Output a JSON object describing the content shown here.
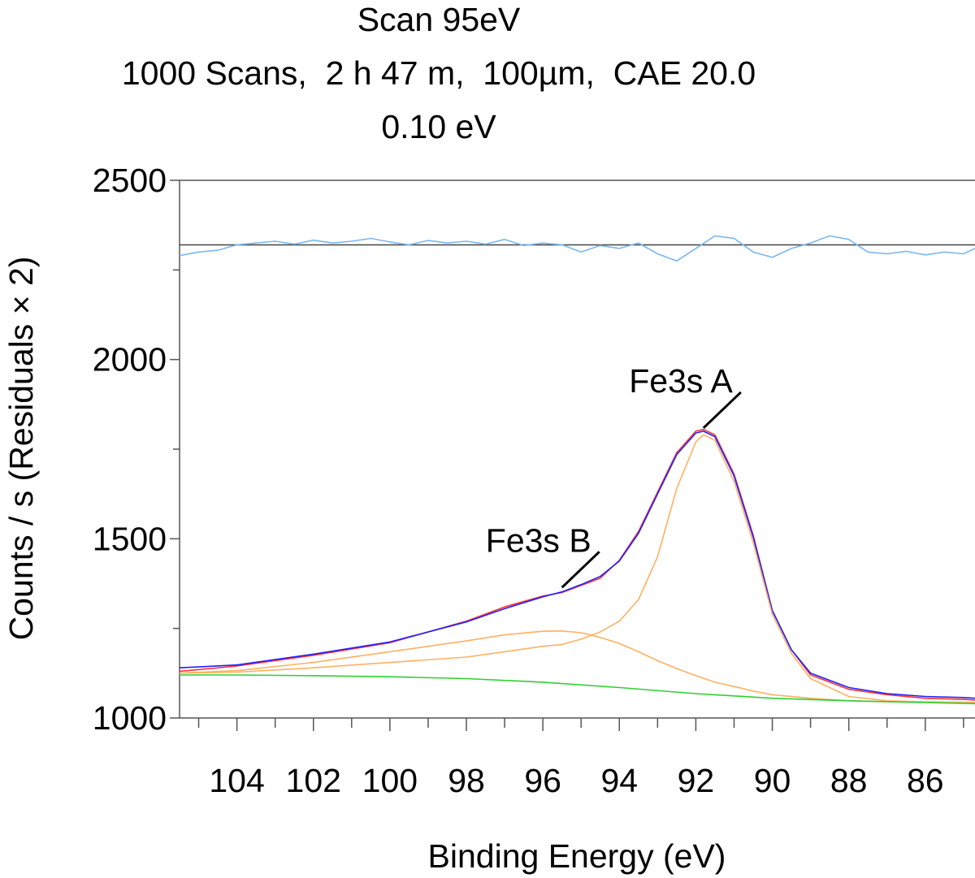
{
  "title_lines": [
    "Scan 95eV",
    "1000 Scans,  2 h 47 m,  100µm,  CAE 20.0",
    "0.10 eV"
  ],
  "chart_data": {
    "type": "line",
    "xlabel": "Binding Energy (eV)",
    "ylabel": "Counts / s  (Residuals × 2)",
    "x_axis_reversed": true,
    "xlim": [
      105.5,
      84.7
    ],
    "ylim": [
      1000,
      2500
    ],
    "x_ticks": [
      104,
      102,
      100,
      98,
      96,
      94,
      92,
      90,
      88,
      86
    ],
    "y_ticks": [
      1000,
      1500,
      2000,
      2500
    ],
    "residual_baseline": 2320,
    "annotations": [
      {
        "label": "Fe3s A",
        "x": 91.8,
        "y": 1800
      },
      {
        "label": "Fe3s B",
        "x": 95.5,
        "y": 1355
      }
    ],
    "series": [
      {
        "color": "#ff3030",
        "x": [
          105.5,
          104,
          102,
          100,
          98,
          97,
          96,
          95.5,
          95,
          94.5,
          94,
          93.5,
          93,
          92.5,
          92,
          91.8,
          91.5,
          91,
          90.5,
          90,
          89.5,
          89,
          88,
          87,
          86,
          85,
          84.7
        ],
        "y": [
          1130,
          1145,
          1175,
          1210,
          1270,
          1310,
          1340,
          1350,
          1370,
          1390,
          1440,
          1520,
          1630,
          1740,
          1800,
          1805,
          1790,
          1680,
          1510,
          1300,
          1190,
          1120,
          1080,
          1065,
          1055,
          1052,
          1050
        ]
      },
      {
        "color": "#2020ff",
        "x": [
          105.5,
          104,
          102,
          100,
          98,
          97,
          96,
          95.5,
          95,
          94.5,
          94,
          93.5,
          93,
          92.5,
          92,
          91.8,
          91.5,
          91,
          90.5,
          90,
          89.5,
          89,
          88,
          87,
          86,
          85,
          84.7
        ],
        "y": [
          1140,
          1148,
          1178,
          1212,
          1268,
          1305,
          1338,
          1352,
          1372,
          1395,
          1438,
          1515,
          1625,
          1735,
          1795,
          1800,
          1785,
          1675,
          1505,
          1300,
          1190,
          1125,
          1085,
          1068,
          1060,
          1057,
          1055
        ]
      },
      {
        "color": "#ffb060",
        "x": [
          105.5,
          104,
          102,
          100,
          98,
          97,
          96,
          95.5,
          95,
          94.5,
          94,
          93.5,
          93,
          92.5,
          92,
          91.8,
          91.5,
          91,
          90.5,
          90,
          89.5,
          89,
          88,
          87,
          86,
          85,
          84.7
        ],
        "y": [
          1125,
          1128,
          1140,
          1155,
          1170,
          1185,
          1200,
          1205,
          1220,
          1240,
          1270,
          1330,
          1450,
          1640,
          1770,
          1790,
          1775,
          1660,
          1490,
          1290,
          1180,
          1110,
          1060,
          1048,
          1045,
          1044,
          1043
        ]
      },
      {
        "color": "#ffb060",
        "x": [
          105.5,
          104,
          102,
          100,
          98,
          97,
          96,
          95.5,
          95,
          94.5,
          94,
          93.5,
          93,
          92.5,
          92,
          91.5,
          91,
          90.5,
          90,
          89,
          88,
          87,
          86,
          85,
          84.7
        ],
        "y": [
          1125,
          1132,
          1155,
          1185,
          1215,
          1232,
          1242,
          1243,
          1238,
          1225,
          1208,
          1185,
          1160,
          1138,
          1118,
          1100,
          1088,
          1075,
          1065,
          1055,
          1048,
          1045,
          1044,
          1043,
          1043
        ]
      },
      {
        "color": "#30d030",
        "x": [
          105.5,
          104,
          102,
          100,
          98,
          96,
          94,
          92,
          90,
          88,
          86,
          84.7
        ],
        "y": [
          1120,
          1120,
          1118,
          1115,
          1110,
          1100,
          1085,
          1068,
          1055,
          1048,
          1043,
          1040
        ]
      },
      {
        "color": "#7ab8f0",
        "x": [
          105.5,
          105,
          104.5,
          104,
          103.5,
          103,
          102.5,
          102,
          101.5,
          101,
          100.5,
          100,
          99.5,
          99,
          98.5,
          98,
          97.5,
          97,
          96.5,
          96,
          95.5,
          95,
          94.5,
          94,
          93.5,
          93,
          92.5,
          92,
          91.5,
          91,
          90.5,
          90,
          89.5,
          89,
          88.5,
          88,
          87.5,
          87,
          86.5,
          86,
          85.5,
          85,
          84.7
        ],
        "y": [
          2290,
          2300,
          2305,
          2320,
          2325,
          2330,
          2322,
          2333,
          2325,
          2330,
          2338,
          2328,
          2320,
          2332,
          2325,
          2330,
          2322,
          2335,
          2318,
          2325,
          2320,
          2300,
          2318,
          2310,
          2325,
          2295,
          2275,
          2310,
          2345,
          2338,
          2300,
          2285,
          2310,
          2325,
          2345,
          2335,
          2300,
          2295,
          2302,
          2292,
          2300,
          2295,
          2310
        ]
      }
    ]
  }
}
